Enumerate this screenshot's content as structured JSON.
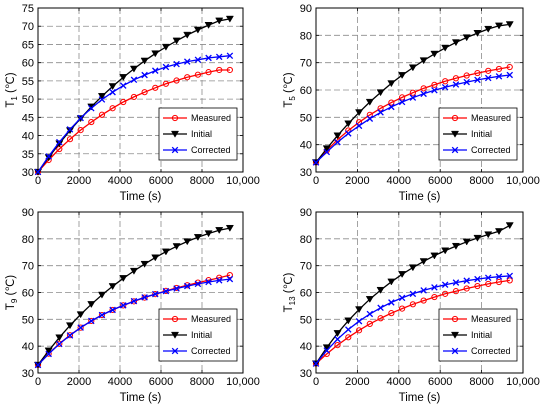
{
  "chart_data": [
    {
      "type": "line",
      "ylabel": {
        "main": "T",
        "sub": "1",
        "unit": " (℃)"
      },
      "xlabel": "Time (s)",
      "xlim": [
        0,
        10000
      ],
      "ylim": [
        30,
        75
      ],
      "xticks": [
        "0",
        "2000",
        "4000",
        "6000",
        "8000",
        "10,000"
      ],
      "yticks": [
        "30",
        "35",
        "40",
        "45",
        "50",
        "55",
        "60",
        "65",
        "70",
        "75"
      ],
      "grid": true,
      "legend_position": "lower-right",
      "series": [
        {
          "name": "Measured",
          "color": "#ff0000",
          "marker": "circle",
          "x": [
            0,
            520,
            1040,
            1560,
            2080,
            2600,
            3120,
            3640,
            4160,
            4680,
            5200,
            5720,
            6240,
            6760,
            7280,
            7800,
            8320,
            8840,
            9360
          ],
          "values": [
            30.0,
            33.3,
            36.3,
            39.0,
            41.5,
            43.7,
            45.7,
            47.5,
            49.2,
            50.6,
            51.9,
            53.1,
            54.2,
            55.1,
            56.0,
            56.7,
            57.4,
            58.0,
            58.0
          ]
        },
        {
          "name": "Initial",
          "color": "#000000",
          "marker": "triangle-down",
          "x": [
            0,
            520,
            1040,
            1560,
            2080,
            2600,
            3120,
            3640,
            4160,
            4680,
            5200,
            5720,
            6240,
            6760,
            7280,
            7800,
            8320,
            8840,
            9360
          ],
          "values": [
            30.0,
            34.0,
            37.8,
            41.4,
            44.7,
            47.9,
            50.8,
            53.5,
            56.0,
            58.3,
            60.5,
            62.5,
            64.3,
            66.0,
            67.6,
            69.0,
            70.3,
            71.5,
            72.0
          ]
        },
        {
          "name": "Corrected",
          "color": "#0000ff",
          "marker": "x",
          "x": [
            0,
            520,
            1040,
            1560,
            2080,
            2600,
            3120,
            3640,
            4160,
            4680,
            5200,
            5720,
            6240,
            6760,
            7280,
            7800,
            8320,
            8840,
            9360
          ],
          "values": [
            30.0,
            34.3,
            38.2,
            41.7,
            44.8,
            47.5,
            49.9,
            51.9,
            53.7,
            55.3,
            56.6,
            57.8,
            58.8,
            59.6,
            60.3,
            60.8,
            61.3,
            61.6,
            61.9
          ]
        }
      ]
    },
    {
      "type": "line",
      "ylabel": {
        "main": "T",
        "sub": "5",
        "unit": " (℃)"
      },
      "xlabel": "Time (s)",
      "xlim": [
        0,
        10000
      ],
      "ylim": [
        30,
        90
      ],
      "xticks": [
        "0",
        "2000",
        "4000",
        "6000",
        "8000",
        "10,000"
      ],
      "yticks": [
        "30",
        "40",
        "50",
        "60",
        "70",
        "80",
        "90"
      ],
      "grid": true,
      "legend_position": "lower-right",
      "series": [
        {
          "name": "Measured",
          "color": "#ff0000",
          "marker": "circle",
          "x": [
            0,
            520,
            1040,
            1560,
            2080,
            2600,
            3120,
            3640,
            4160,
            4680,
            5200,
            5720,
            6240,
            6760,
            7280,
            7800,
            8320,
            8840,
            9360
          ],
          "values": [
            33.5,
            37.9,
            41.8,
            45.2,
            48.2,
            50.9,
            53.3,
            55.4,
            57.3,
            59.0,
            60.6,
            61.9,
            63.2,
            64.3,
            65.3,
            66.2,
            67.0,
            67.7,
            68.4
          ]
        },
        {
          "name": "Initial",
          "color": "#000000",
          "marker": "triangle-down",
          "x": [
            0,
            520,
            1040,
            1560,
            2080,
            2600,
            3120,
            3640,
            4160,
            4680,
            5200,
            5720,
            6240,
            6760,
            7280,
            7800,
            8320,
            8840,
            9360
          ],
          "values": [
            33.5,
            38.6,
            43.3,
            47.7,
            51.8,
            55.6,
            59.1,
            62.4,
            65.4,
            68.2,
            70.8,
            73.2,
            75.4,
            77.4,
            79.2,
            80.8,
            82.3,
            83.5,
            84.0
          ]
        },
        {
          "name": "Corrected",
          "color": "#0000ff",
          "marker": "x",
          "x": [
            0,
            520,
            1040,
            1560,
            2080,
            2600,
            3120,
            3640,
            4160,
            4680,
            5200,
            5720,
            6240,
            6760,
            7280,
            7800,
            8320,
            8840,
            9360
          ],
          "values": [
            33.5,
            37.3,
            40.9,
            44.1,
            46.9,
            49.5,
            51.8,
            53.8,
            55.6,
            57.2,
            58.6,
            59.9,
            61.0,
            62.0,
            62.9,
            63.7,
            64.4,
            65.0,
            65.5
          ]
        }
      ]
    },
    {
      "type": "line",
      "ylabel": {
        "main": "T",
        "sub": "9",
        "unit": " (℃)"
      },
      "xlabel": "Time (s)",
      "xlim": [
        0,
        10000
      ],
      "ylim": [
        30,
        90
      ],
      "xticks": [
        "0",
        "2000",
        "4000",
        "6000",
        "8000",
        "10,000"
      ],
      "yticks": [
        "30",
        "40",
        "50",
        "60",
        "70",
        "80",
        "90"
      ],
      "grid": true,
      "legend_position": "lower-right",
      "series": [
        {
          "name": "Measured",
          "color": "#ff0000",
          "marker": "circle",
          "x": [
            0,
            520,
            1040,
            1560,
            2080,
            2600,
            3120,
            3640,
            4160,
            4680,
            5200,
            5720,
            6240,
            6760,
            7280,
            7800,
            8320,
            8840,
            9360
          ],
          "values": [
            33.0,
            37.2,
            40.9,
            44.1,
            46.9,
            49.4,
            51.6,
            53.5,
            55.2,
            56.7,
            58.1,
            59.4,
            60.6,
            61.7,
            62.7,
            63.7,
            64.6,
            65.5,
            66.5
          ]
        },
        {
          "name": "Initial",
          "color": "#000000",
          "marker": "triangle-down",
          "x": [
            0,
            520,
            1040,
            1560,
            2080,
            2600,
            3120,
            3640,
            4160,
            4680,
            5200,
            5720,
            6240,
            6760,
            7280,
            7800,
            8320,
            8840,
            9360
          ],
          "values": [
            33.0,
            38.3,
            43.2,
            47.7,
            51.8,
            55.6,
            59.1,
            62.3,
            65.3,
            68.0,
            70.6,
            73.0,
            75.2,
            77.2,
            79.0,
            80.6,
            82.0,
            83.2,
            84.0
          ]
        },
        {
          "name": "Corrected",
          "color": "#0000ff",
          "marker": "x",
          "x": [
            0,
            520,
            1040,
            1560,
            2080,
            2600,
            3120,
            3640,
            4160,
            4680,
            5200,
            5720,
            6240,
            6760,
            7280,
            7800,
            8320,
            8840,
            9360
          ],
          "values": [
            33.0,
            37.1,
            40.8,
            44.0,
            46.9,
            49.4,
            51.6,
            53.5,
            55.2,
            56.8,
            58.2,
            59.4,
            60.5,
            61.5,
            62.4,
            63.2,
            63.9,
            64.5,
            65.0
          ]
        }
      ]
    },
    {
      "type": "line",
      "ylabel": {
        "main": "T",
        "sub": "13",
        "unit": " (℃)"
      },
      "xlabel": "Time (s)",
      "xlim": [
        0,
        10000
      ],
      "ylim": [
        30,
        90
      ],
      "xticks": [
        "0",
        "2000",
        "4000",
        "6000",
        "8000",
        "10,000"
      ],
      "yticks": [
        "30",
        "40",
        "50",
        "60",
        "70",
        "80",
        "90"
      ],
      "grid": true,
      "legend_position": "lower-right",
      "series": [
        {
          "name": "Measured",
          "color": "#ff0000",
          "marker": "circle",
          "x": [
            0,
            520,
            1040,
            1560,
            2080,
            2600,
            3120,
            3640,
            4160,
            4680,
            5200,
            5720,
            6240,
            6760,
            7280,
            7800,
            8320,
            8840,
            9360
          ],
          "values": [
            33.5,
            37.1,
            40.4,
            43.3,
            45.9,
            48.3,
            50.4,
            52.3,
            54.0,
            55.6,
            57.0,
            58.3,
            59.5,
            60.5,
            61.5,
            62.4,
            63.2,
            63.9,
            64.5
          ]
        },
        {
          "name": "Initial",
          "color": "#000000",
          "marker": "triangle-down",
          "x": [
            0,
            520,
            1040,
            1560,
            2080,
            2600,
            3120,
            3640,
            4160,
            4680,
            5200,
            5720,
            6240,
            6760,
            7280,
            7800,
            8320,
            8840,
            9360
          ],
          "values": [
            33.5,
            39.5,
            44.8,
            49.5,
            53.7,
            57.5,
            60.9,
            64.0,
            66.8,
            69.3,
            71.6,
            73.7,
            75.6,
            77.3,
            78.9,
            80.3,
            81.6,
            82.8,
            85.0
          ]
        },
        {
          "name": "Corrected",
          "color": "#0000ff",
          "marker": "x",
          "x": [
            0,
            520,
            1040,
            1560,
            2080,
            2600,
            3120,
            3640,
            4160,
            4680,
            5200,
            5720,
            6240,
            6760,
            7280,
            7800,
            8320,
            8840,
            9360
          ],
          "values": [
            33.5,
            38.4,
            42.6,
            46.2,
            49.3,
            52.0,
            54.3,
            56.3,
            58.0,
            59.5,
            60.8,
            61.9,
            62.9,
            63.7,
            64.4,
            65.0,
            65.5,
            65.9,
            66.2
          ]
        }
      ]
    }
  ]
}
